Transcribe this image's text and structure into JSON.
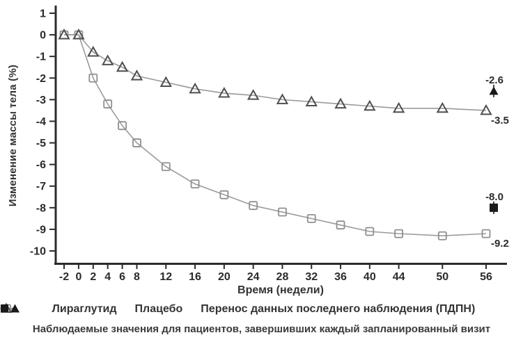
{
  "chart_data": {
    "type": "line",
    "xlabel": "Время (недели)",
    "ylabel": "Изменение массы тела (%)",
    "x": [
      -2,
      0,
      2,
      4,
      6,
      8,
      12,
      16,
      20,
      24,
      28,
      32,
      36,
      40,
      44,
      50,
      56
    ],
    "x_ticks": [
      -2,
      0,
      2,
      4,
      6,
      8,
      12,
      16,
      20,
      24,
      28,
      32,
      36,
      40,
      44,
      50,
      56
    ],
    "y_ticks": [
      1,
      0,
      -1,
      -2,
      -3,
      -4,
      -5,
      -6,
      -7,
      -8,
      -9,
      -10
    ],
    "ylim": [
      -10,
      1
    ],
    "grid": false,
    "legend_position": "bottom",
    "series": [
      {
        "name": "Лираглутид",
        "marker": "open-square",
        "values": [
          0,
          0,
          -2.0,
          -3.2,
          -4.2,
          -5.0,
          -6.1,
          -6.9,
          -7.4,
          -7.9,
          -8.2,
          -8.5,
          -8.8,
          -9.1,
          -9.2,
          -9.3,
          -9.2
        ],
        "end_label": "-9.2"
      },
      {
        "name": "Плацебо",
        "marker": "open-triangle",
        "values": [
          0,
          0,
          -0.8,
          -1.2,
          -1.5,
          -1.9,
          -2.2,
          -2.5,
          -2.7,
          -2.8,
          -3.0,
          -3.1,
          -3.2,
          -3.3,
          -3.4,
          -3.4,
          -3.5
        ],
        "end_label": "-3.5"
      }
    ],
    "locf": {
      "label": "Перенос данных последнего наблюдения (ПДПН)",
      "points": [
        {
          "series": "Плацебо",
          "marker": "filled-triangle",
          "value": -2.6,
          "label": "-2.6"
        },
        {
          "series": "Лираглутид",
          "marker": "filled-square",
          "value": -8.0,
          "label": "-8.0"
        }
      ]
    },
    "footnote": "Наблюдаемые значения для пациентов, завершивших каждый запланированный визит",
    "colors": {
      "line": "#9a9a9a",
      "square_stroke": "#8f8f8f",
      "triangle_stroke": "#4f4f4f",
      "filled_marker": "#1a1a1a",
      "axis": "#2b2b2b",
      "text": "#2b2b2b"
    }
  }
}
